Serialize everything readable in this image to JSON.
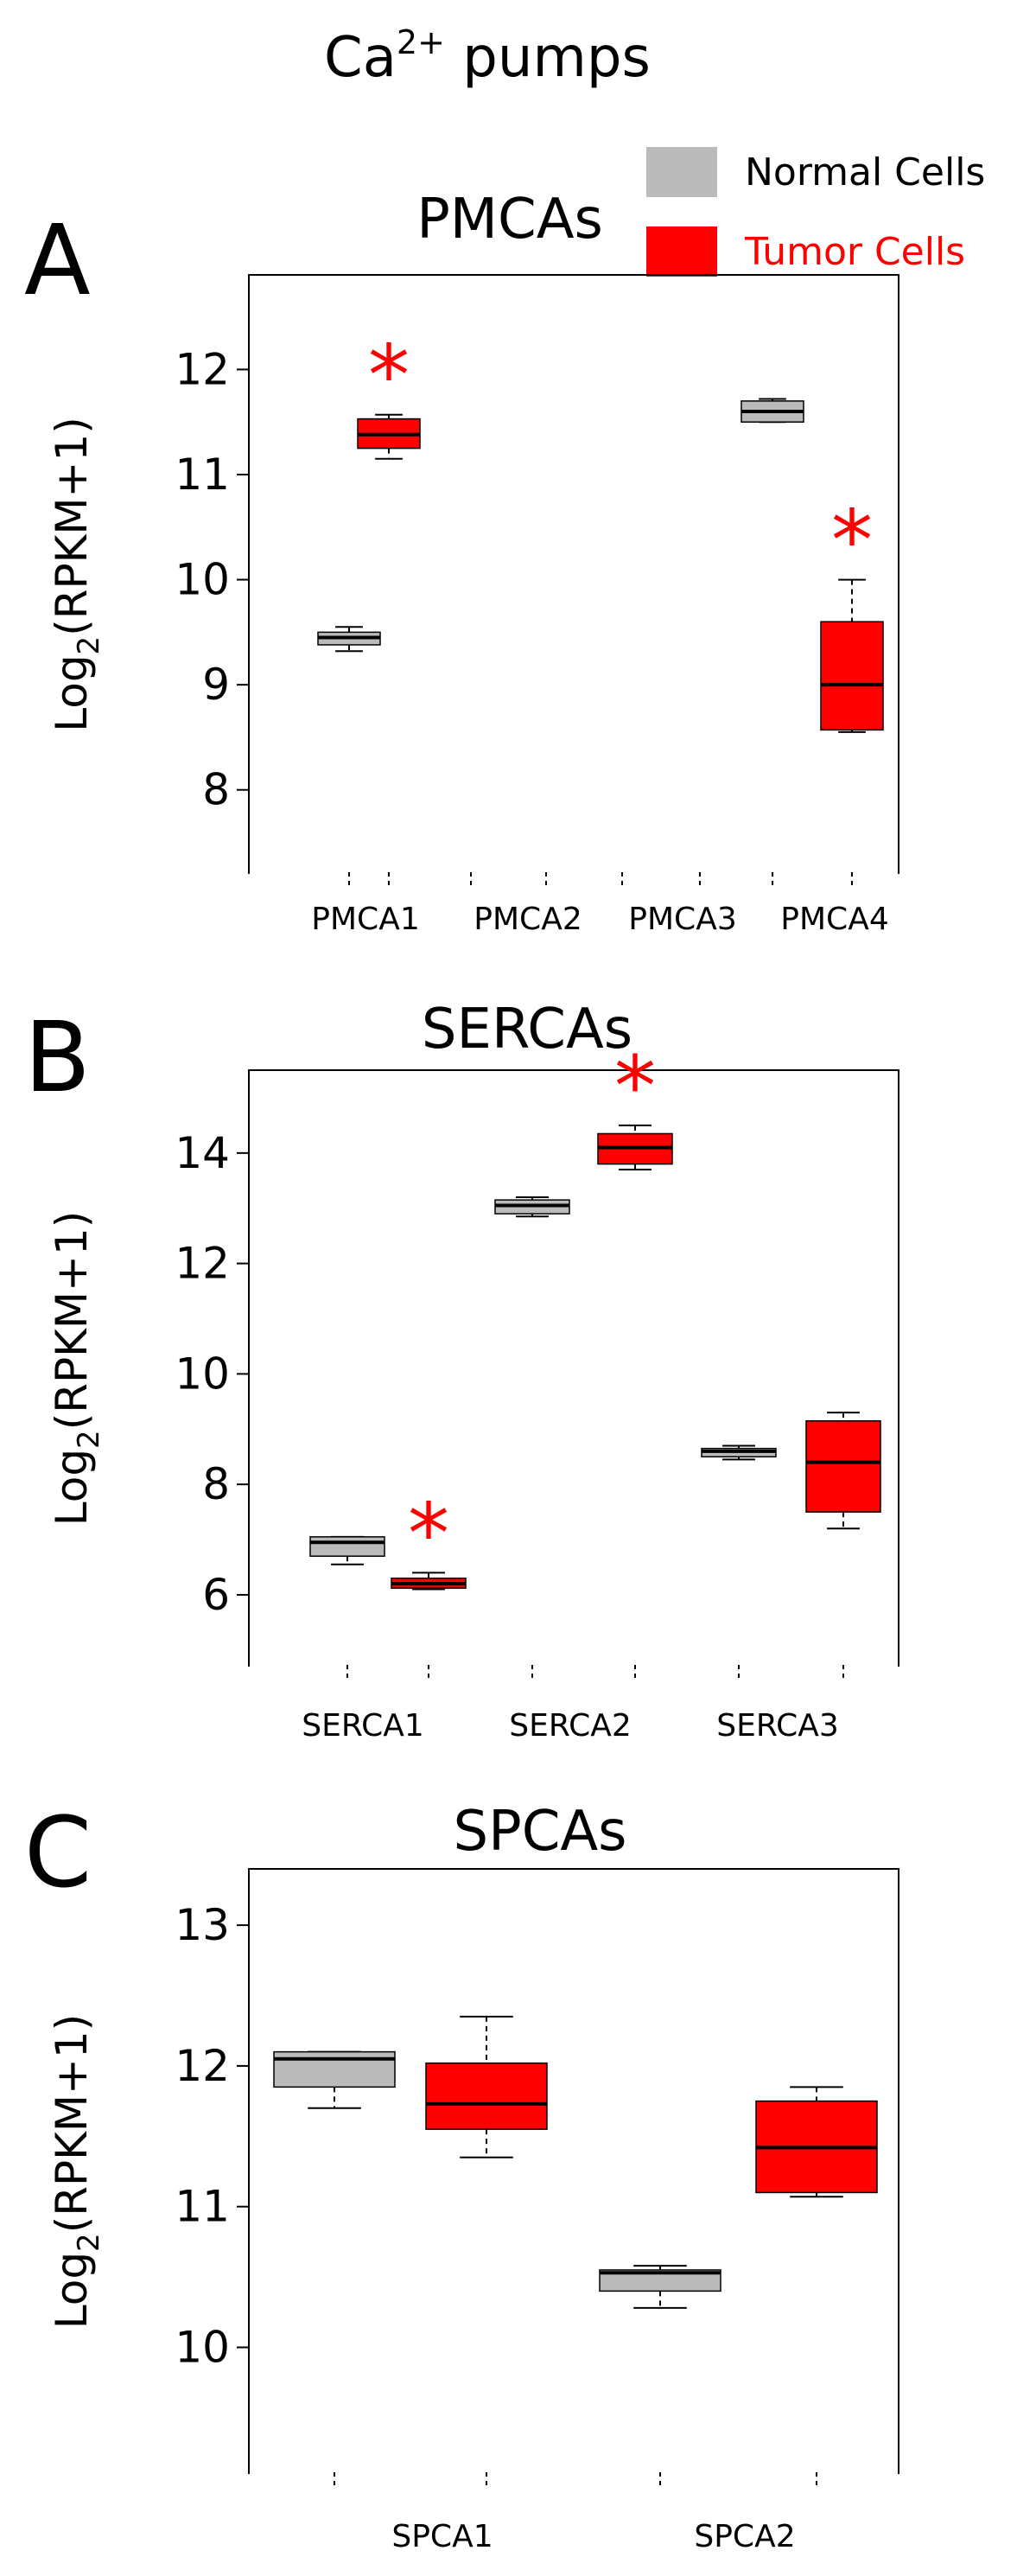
{
  "figure": {
    "title_main": "Ca",
    "title_sup": "2+",
    "title_rest": " pumps",
    "legend": [
      {
        "label": "Normal Cells",
        "color": "#bbbbbb",
        "text_color": "#000000"
      },
      {
        "label": "Tumor Cells",
        "color": "#ff0000",
        "text_color": "#ff0000"
      }
    ]
  },
  "colors": {
    "normal": "#bbbbbb",
    "tumor": "#ff0000",
    "star": "#ff0000"
  },
  "chart_data": [
    {
      "panel_letter": "A",
      "type": "box",
      "title": "PMCAs",
      "ylabel_main": "Log",
      "ylabel_sub": "2",
      "ylabel_rest": "(RPKM+1)",
      "ylim": [
        7.2,
        12.9
      ],
      "yticks": [
        8,
        9,
        10,
        11,
        12
      ],
      "categories": [
        "PMCA1",
        "PMCA2",
        "PMCA3",
        "PMCA4"
      ],
      "series": [
        {
          "name": "Normal Cells",
          "boxes": [
            {
              "category": "PMCA1",
              "whislo": 9.32,
              "q1": 9.38,
              "med": 9.45,
              "q3": 9.5,
              "whishi": 9.55
            },
            {
              "category": "PMCA4",
              "whislo": 11.5,
              "q1": 11.5,
              "med": 11.6,
              "q3": 11.7,
              "whishi": 11.72
            }
          ]
        },
        {
          "name": "Tumor Cells",
          "boxes": [
            {
              "category": "PMCA1",
              "whislo": 11.15,
              "q1": 11.25,
              "med": 11.38,
              "q3": 11.53,
              "whishi": 11.57,
              "significant": true
            },
            {
              "category": "PMCA4",
              "whislo": 8.55,
              "q1": 8.57,
              "med": 9.0,
              "q3": 9.6,
              "whishi": 10.0,
              "significant": true
            }
          ]
        }
      ],
      "annotation": "*"
    },
    {
      "panel_letter": "B",
      "type": "box",
      "title": "SERCAs",
      "ylabel_main": "Log",
      "ylabel_sub": "2",
      "ylabel_rest": "(RPKM+1)",
      "ylim": [
        4.7,
        15.5
      ],
      "yticks": [
        6,
        8,
        10,
        12,
        14
      ],
      "categories": [
        "SERCA1",
        "SERCA2",
        "SERCA3"
      ],
      "series": [
        {
          "name": "Normal Cells",
          "boxes": [
            {
              "category": "SERCA1",
              "whislo": 6.55,
              "q1": 6.7,
              "med": 6.95,
              "q3": 7.05,
              "whishi": 7.05
            },
            {
              "category": "SERCA2",
              "whislo": 12.85,
              "q1": 12.9,
              "med": 13.05,
              "q3": 13.15,
              "whishi": 13.2
            },
            {
              "category": "SERCA3",
              "whislo": 8.45,
              "q1": 8.5,
              "med": 8.6,
              "q3": 8.65,
              "whishi": 8.7
            }
          ]
        },
        {
          "name": "Tumor Cells",
          "boxes": [
            {
              "category": "SERCA1",
              "whislo": 6.1,
              "q1": 6.12,
              "med": 6.2,
              "q3": 6.3,
              "whishi": 6.4,
              "significant": true
            },
            {
              "category": "SERCA2",
              "whislo": 13.7,
              "q1": 13.8,
              "med": 14.1,
              "q3": 14.35,
              "whishi": 14.5,
              "significant": true
            },
            {
              "category": "SERCA3",
              "whislo": 7.2,
              "q1": 7.5,
              "med": 8.4,
              "q3": 9.15,
              "whishi": 9.3
            }
          ]
        }
      ],
      "annotation": "*"
    },
    {
      "panel_letter": "C",
      "type": "box",
      "title": "SPCAs",
      "ylabel_main": "Log",
      "ylabel_sub": "2",
      "ylabel_rest": "(RPKM+1)",
      "ylim": [
        9.1,
        13.4
      ],
      "yticks": [
        10,
        11,
        12,
        13
      ],
      "categories": [
        "SPCA1",
        "SPCA2"
      ],
      "series": [
        {
          "name": "Normal Cells",
          "boxes": [
            {
              "category": "SPCA1",
              "whislo": 11.7,
              "q1": 11.85,
              "med": 12.05,
              "q3": 12.1,
              "whishi": 12.1
            },
            {
              "category": "SPCA2",
              "whislo": 10.28,
              "q1": 10.4,
              "med": 10.53,
              "q3": 10.55,
              "whishi": 10.58
            }
          ]
        },
        {
          "name": "Tumor Cells",
          "boxes": [
            {
              "category": "SPCA1",
              "whislo": 11.35,
              "q1": 11.55,
              "med": 11.73,
              "q3": 12.02,
              "whishi": 12.35
            },
            {
              "category": "SPCA2",
              "whislo": 11.07,
              "q1": 11.1,
              "med": 11.42,
              "q3": 11.75,
              "whishi": 11.85
            }
          ]
        }
      ]
    }
  ]
}
